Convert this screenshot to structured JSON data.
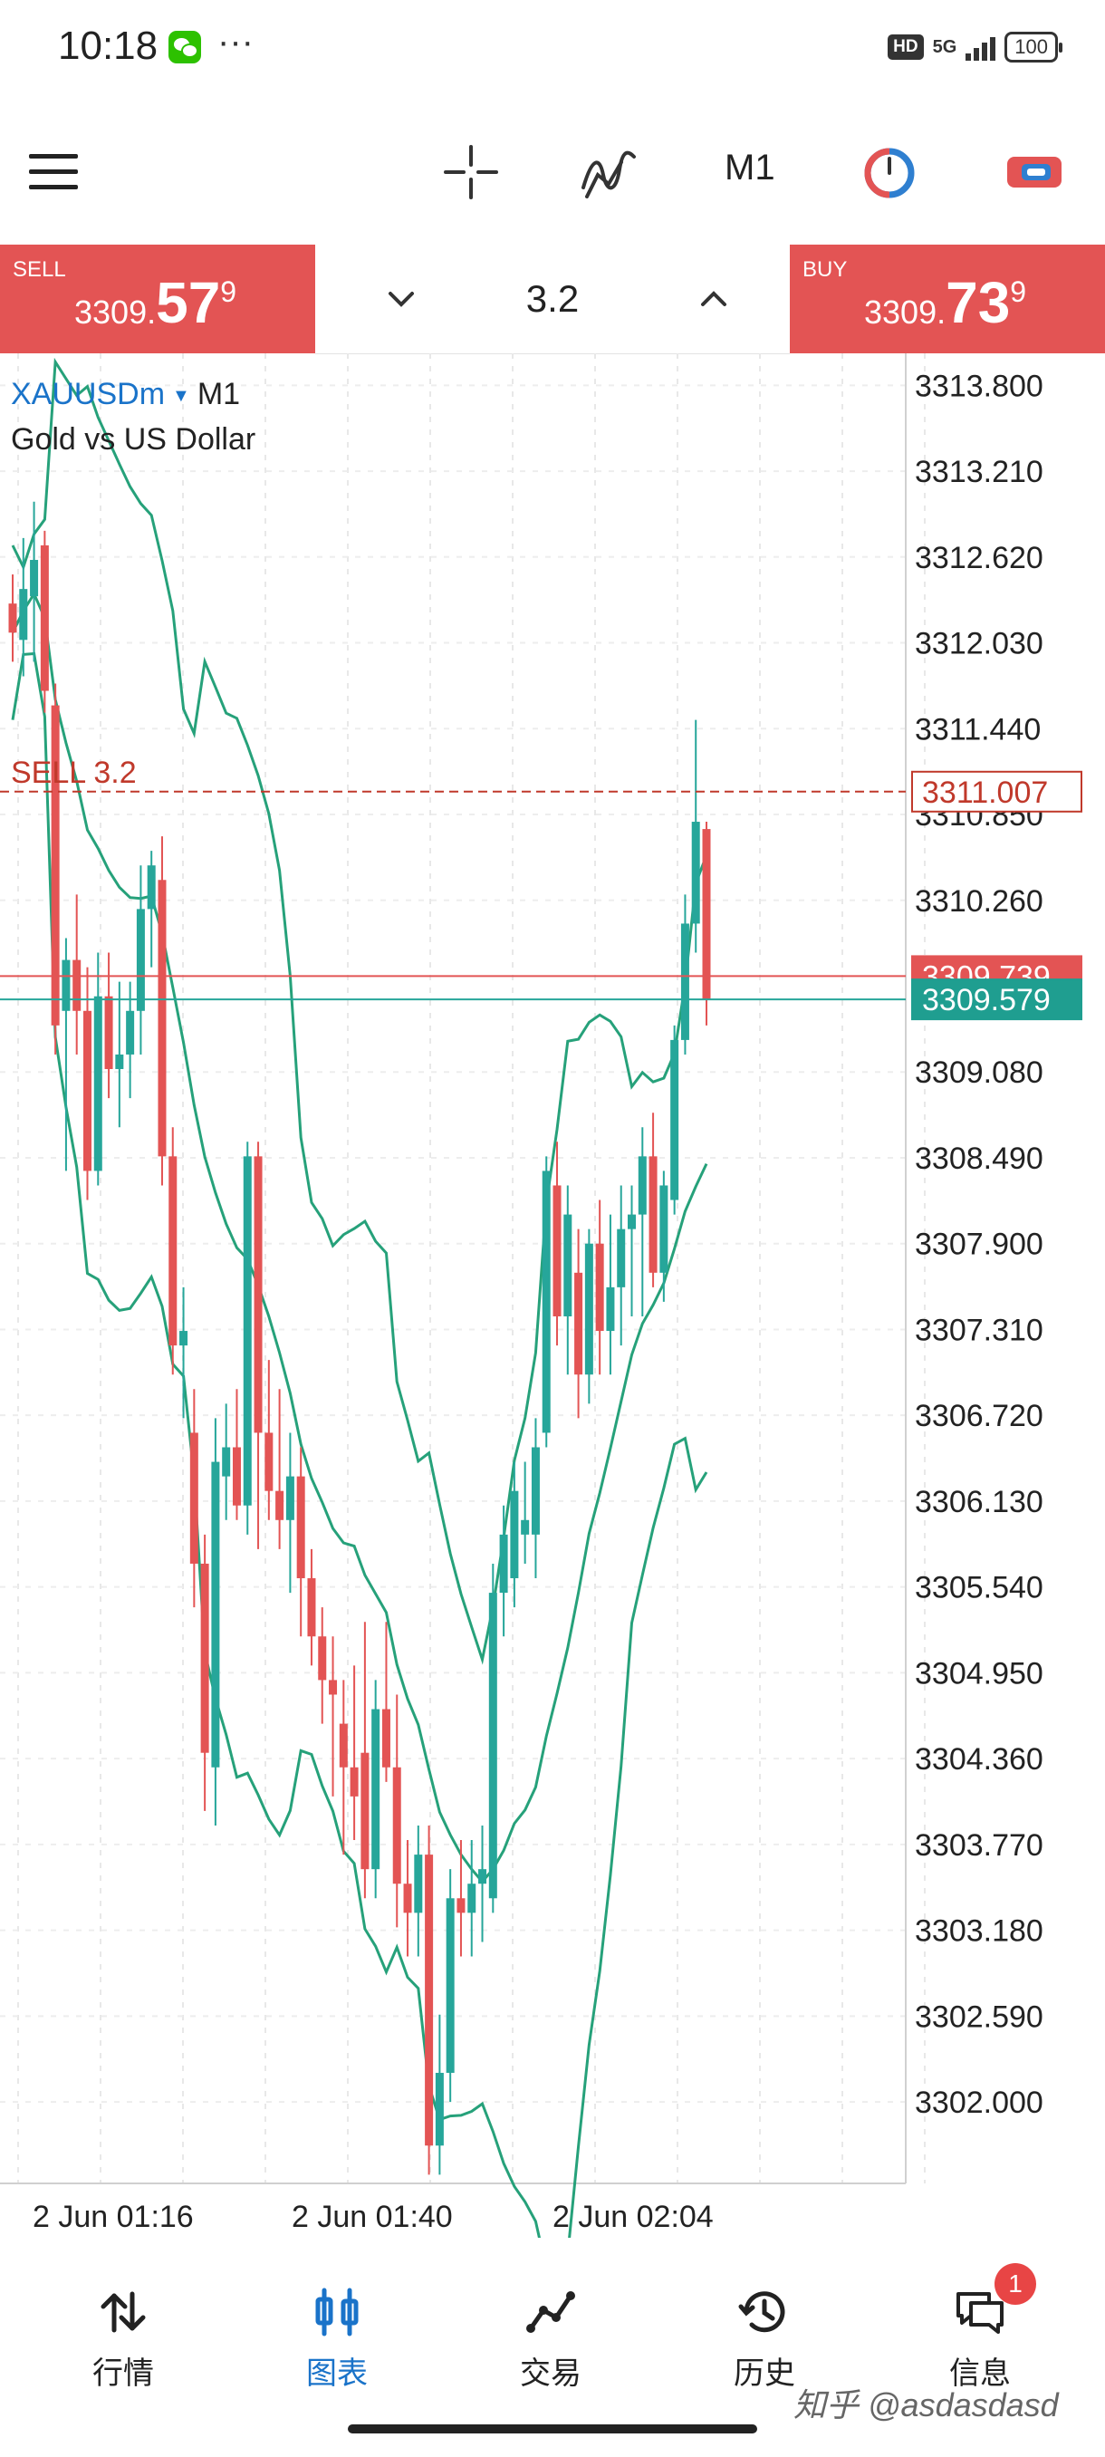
{
  "status_bar": {
    "time": "10:18",
    "more": "···",
    "hd": "HD",
    "network": "5G",
    "battery": "100"
  },
  "toolbar": {
    "timeframe": "M1",
    "icons": [
      "menu-icon",
      "crosshair-icon",
      "indicators-icon",
      "timer-icon",
      "objects-icon"
    ]
  },
  "trade": {
    "sell_label": "SELL",
    "sell_price_a": "3309.",
    "sell_price_b": "57",
    "sell_price_c": "9",
    "buy_label": "BUY",
    "buy_price_a": "3309.",
    "buy_price_b": "73",
    "buy_price_c": "9",
    "volume": "3.2"
  },
  "chart": {
    "symbol": "XAUUSDm",
    "symbol_tf": "M1",
    "description": "Gold vs US Dollar",
    "position_label": "SELL 3.2",
    "position_price": "3311.007",
    "ask_price": "3309.739",
    "bid_price": "3309.579",
    "colors": {
      "bull": "#26a69a",
      "bear": "#e35454",
      "band": "#26a17a",
      "position": "#c0392b"
    }
  },
  "chart_data": {
    "type": "candlestick",
    "y_ticks": [
      3313.8,
      3313.21,
      3312.62,
      3312.03,
      3311.44,
      3310.85,
      3310.26,
      3309.08,
      3308.49,
      3307.9,
      3307.31,
      3306.72,
      3306.13,
      3305.54,
      3304.95,
      3304.36,
      3303.77,
      3303.18,
      3302.59,
      3302.0
    ],
    "y_tick_labels": [
      "3313.800",
      "3313.210",
      "3312.620",
      "3312.030",
      "3311.440",
      "3310.850",
      "3310.260",
      "3309.080",
      "3308.490",
      "3307.900",
      "3307.310",
      "3306.720",
      "3306.130",
      "3305.540",
      "3304.950",
      "3304.360",
      "3303.770",
      "3303.180",
      "3302.590",
      "3302.000"
    ],
    "ylim": [
      3301.44,
      3314.02
    ],
    "x_labels": [
      "2 Jun 01:16",
      "2 Jun 01:40",
      "2 Jun 02:04"
    ],
    "candles": [
      {
        "o": 3312.3,
        "h": 3312.5,
        "l": 3311.9,
        "c": 3312.1
      },
      {
        "o": 3312.05,
        "h": 3312.75,
        "l": 3311.8,
        "c": 3312.4
      },
      {
        "o": 3312.35,
        "h": 3313.0,
        "l": 3311.9,
        "c": 3312.6
      },
      {
        "o": 3312.7,
        "h": 3312.8,
        "l": 3311.55,
        "c": 3311.7
      },
      {
        "o": 3311.6,
        "h": 3311.75,
        "l": 3309.2,
        "c": 3309.4
      },
      {
        "o": 3309.5,
        "h": 3310.0,
        "l": 3308.4,
        "c": 3309.85
      },
      {
        "o": 3309.85,
        "h": 3310.3,
        "l": 3309.2,
        "c": 3309.5
      },
      {
        "o": 3309.5,
        "h": 3309.8,
        "l": 3308.2,
        "c": 3308.4
      },
      {
        "o": 3308.4,
        "h": 3309.9,
        "l": 3308.3,
        "c": 3309.6
      },
      {
        "o": 3309.6,
        "h": 3309.9,
        "l": 3308.9,
        "c": 3309.1
      },
      {
        "o": 3309.1,
        "h": 3309.7,
        "l": 3308.7,
        "c": 3309.2
      },
      {
        "o": 3309.2,
        "h": 3309.7,
        "l": 3308.9,
        "c": 3309.5
      },
      {
        "o": 3309.5,
        "h": 3310.5,
        "l": 3309.2,
        "c": 3310.2
      },
      {
        "o": 3310.2,
        "h": 3310.6,
        "l": 3309.8,
        "c": 3310.5
      },
      {
        "o": 3310.4,
        "h": 3310.7,
        "l": 3308.3,
        "c": 3308.5
      },
      {
        "o": 3308.5,
        "h": 3308.7,
        "l": 3307.0,
        "c": 3307.2
      },
      {
        "o": 3307.2,
        "h": 3307.6,
        "l": 3306.7,
        "c": 3307.3
      },
      {
        "o": 3306.6,
        "h": 3306.9,
        "l": 3305.4,
        "c": 3305.7
      },
      {
        "o": 3305.7,
        "h": 3305.9,
        "l": 3304.0,
        "c": 3304.4
      },
      {
        "o": 3304.3,
        "h": 3306.7,
        "l": 3303.9,
        "c": 3306.4
      },
      {
        "o": 3306.3,
        "h": 3306.8,
        "l": 3306.0,
        "c": 3306.5
      },
      {
        "o": 3306.5,
        "h": 3306.9,
        "l": 3306.0,
        "c": 3306.1
      },
      {
        "o": 3306.1,
        "h": 3308.6,
        "l": 3305.9,
        "c": 3308.5
      },
      {
        "o": 3308.5,
        "h": 3308.6,
        "l": 3305.8,
        "c": 3306.6
      },
      {
        "o": 3306.6,
        "h": 3307.1,
        "l": 3306.0,
        "c": 3306.2
      },
      {
        "o": 3306.2,
        "h": 3306.9,
        "l": 3305.8,
        "c": 3306.0
      },
      {
        "o": 3306.0,
        "h": 3306.6,
        "l": 3305.5,
        "c": 3306.3
      },
      {
        "o": 3306.3,
        "h": 3306.5,
        "l": 3305.2,
        "c": 3305.6
      },
      {
        "o": 3305.6,
        "h": 3305.8,
        "l": 3305.0,
        "c": 3305.2
      },
      {
        "o": 3305.2,
        "h": 3305.4,
        "l": 3304.6,
        "c": 3304.9
      },
      {
        "o": 3304.9,
        "h": 3305.2,
        "l": 3304.1,
        "c": 3304.8
      },
      {
        "o": 3304.6,
        "h": 3304.9,
        "l": 3303.7,
        "c": 3304.3
      },
      {
        "o": 3304.3,
        "h": 3305.0,
        "l": 3303.8,
        "c": 3304.1
      },
      {
        "o": 3304.4,
        "h": 3305.3,
        "l": 3303.4,
        "c": 3303.6
      },
      {
        "o": 3303.6,
        "h": 3304.9,
        "l": 3303.4,
        "c": 3304.7
      },
      {
        "o": 3304.7,
        "h": 3305.3,
        "l": 3304.2,
        "c": 3304.3
      },
      {
        "o": 3304.3,
        "h": 3304.8,
        "l": 3303.2,
        "c": 3303.5
      },
      {
        "o": 3303.5,
        "h": 3303.8,
        "l": 3303.0,
        "c": 3303.3
      },
      {
        "o": 3303.3,
        "h": 3303.9,
        "l": 3303.0,
        "c": 3303.7
      },
      {
        "o": 3303.7,
        "h": 3303.9,
        "l": 3301.5,
        "c": 3301.7
      },
      {
        "o": 3301.7,
        "h": 3302.6,
        "l": 3301.5,
        "c": 3302.2
      },
      {
        "o": 3302.2,
        "h": 3303.6,
        "l": 3302.0,
        "c": 3303.4
      },
      {
        "o": 3303.4,
        "h": 3303.8,
        "l": 3303.0,
        "c": 3303.3
      },
      {
        "o": 3303.3,
        "h": 3303.8,
        "l": 3303.0,
        "c": 3303.5
      },
      {
        "o": 3303.5,
        "h": 3303.9,
        "l": 3303.1,
        "c": 3303.6
      },
      {
        "o": 3303.4,
        "h": 3305.7,
        "l": 3303.3,
        "c": 3305.5
      },
      {
        "o": 3305.5,
        "h": 3306.1,
        "l": 3305.2,
        "c": 3305.9
      },
      {
        "o": 3305.6,
        "h": 3306.4,
        "l": 3305.4,
        "c": 3306.2
      },
      {
        "o": 3305.9,
        "h": 3306.4,
        "l": 3305.7,
        "c": 3306.0
      },
      {
        "o": 3305.9,
        "h": 3306.7,
        "l": 3305.6,
        "c": 3306.5
      },
      {
        "o": 3306.6,
        "h": 3308.5,
        "l": 3306.5,
        "c": 3308.4
      },
      {
        "o": 3308.3,
        "h": 3308.6,
        "l": 3307.2,
        "c": 3307.4
      },
      {
        "o": 3307.4,
        "h": 3308.3,
        "l": 3307.0,
        "c": 3308.1
      },
      {
        "o": 3307.7,
        "h": 3308.0,
        "l": 3306.7,
        "c": 3307.0
      },
      {
        "o": 3307.0,
        "h": 3308.0,
        "l": 3306.8,
        "c": 3307.9
      },
      {
        "o": 3307.9,
        "h": 3308.2,
        "l": 3307.0,
        "c": 3307.3
      },
      {
        "o": 3307.3,
        "h": 3308.1,
        "l": 3307.0,
        "c": 3307.6
      },
      {
        "o": 3307.6,
        "h": 3308.3,
        "l": 3307.2,
        "c": 3308.0
      },
      {
        "o": 3308.0,
        "h": 3308.3,
        "l": 3307.4,
        "c": 3308.1
      },
      {
        "o": 3308.1,
        "h": 3308.7,
        "l": 3307.4,
        "c": 3308.5
      },
      {
        "o": 3308.5,
        "h": 3308.8,
        "l": 3307.6,
        "c": 3307.7
      },
      {
        "o": 3307.7,
        "h": 3308.4,
        "l": 3307.5,
        "c": 3308.3
      },
      {
        "o": 3308.2,
        "h": 3309.4,
        "l": 3308.1,
        "c": 3309.3
      },
      {
        "o": 3309.3,
        "h": 3310.3,
        "l": 3309.2,
        "c": 3310.1
      },
      {
        "o": 3310.1,
        "h": 3311.5,
        "l": 3309.9,
        "c": 3310.8
      },
      {
        "o": 3310.75,
        "h": 3310.8,
        "l": 3309.4,
        "c": 3309.58
      }
    ],
    "bands": {
      "upper": [
        3312.6,
        3312.5,
        3312.3,
        3312.1,
        3311.9,
        3311.8,
        3311.7,
        3311.5,
        3311.3,
        3311.0,
        3310.7,
        3310.4,
        3310.1,
        3309.7,
        3309.3,
        3308.9,
        3308.5,
        3308.2,
        3307.9,
        3307.7,
        3307.6,
        3307.4,
        3307.2,
        3307.0,
        3306.8,
        3306.6,
        3306.4,
        3306.2,
        3306.0,
        3305.8,
        3305.5,
        3305.2,
        3304.9,
        3304.6,
        3304.3,
        3304.1,
        3303.9,
        3303.7,
        3303.4,
        3303.2,
        3302.9,
        3302.7,
        3302.4,
        3302.2,
        3302.1,
        3302.0,
        3302.0,
        3301.9,
        3301.9,
        3301.9,
        3301.8,
        3301.7,
        3301.6,
        3301.5,
        3301.4
      ],
      "upper_x": [
        0,
        1,
        2,
        3,
        4,
        5,
        6,
        7,
        8,
        9,
        10,
        11,
        12,
        13,
        14,
        15,
        16,
        17,
        18,
        19,
        20,
        21,
        22,
        23,
        24,
        25,
        26,
        27,
        28,
        29,
        30,
        31,
        32,
        33,
        34,
        35,
        36,
        37,
        38,
        39,
        40,
        41,
        42,
        43,
        44,
        45,
        46,
        47,
        48,
        49,
        50,
        51,
        52,
        53,
        54
      ]
    }
  },
  "bottom_nav": {
    "items": [
      {
        "label": "行情",
        "icon": "quotes-icon"
      },
      {
        "label": "图表",
        "icon": "chart-icon"
      },
      {
        "label": "交易",
        "icon": "trade-icon"
      },
      {
        "label": "历史",
        "icon": "history-icon"
      },
      {
        "label": "信息",
        "icon": "messages-icon"
      }
    ],
    "badge": "1",
    "watermark": "知乎 @asdasdasd"
  }
}
